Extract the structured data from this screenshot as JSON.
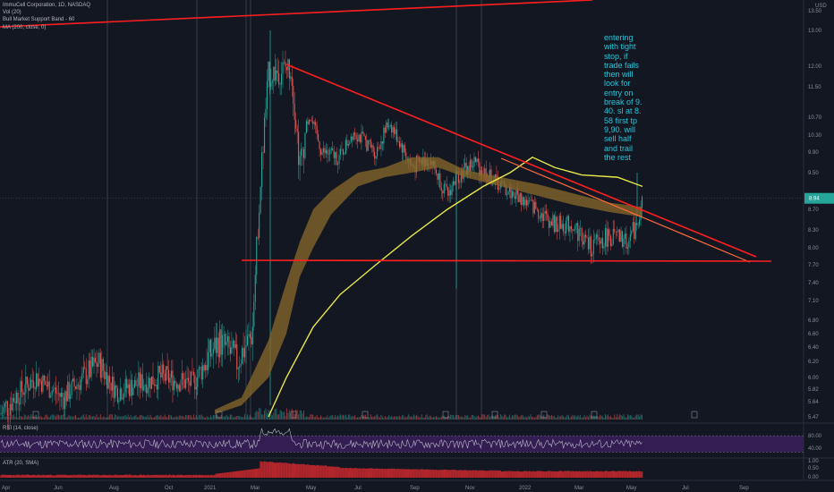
{
  "legend": {
    "symbol": "ImmuCell Corporation, 1D, NASDAQ",
    "vol": "Vol (20)",
    "band": "Bull Market Support Band - 60",
    "ma": "MA (200, close, 0)"
  },
  "annotation_lines": [
    "entering",
    "with tight",
    "stop, if",
    "trade fails",
    "then will",
    "look for",
    "entry on",
    "break of 9.",
    "40. sl at 8.",
    "58 first tp",
    "9,90. will",
    "sell half",
    "and trail",
    "the rest"
  ],
  "rsi_label": "RSI (14, close)",
  "atr_label": "ATR (20, SMA)",
  "colors": {
    "background": "#131722",
    "up": "#26a69a",
    "down": "#ef5350",
    "trendline": "#ff1f1f",
    "ma200": "#e8e84a",
    "band": "#8a6a2a",
    "rsi_line": "#b8b8c8",
    "rsi_band": "#3a1f5a",
    "atr": "#b3262b",
    "annotation": "#26c6da"
  },
  "chart_data": {
    "type": "candlestick",
    "currency": "USD",
    "price_ticks": [
      "13.50",
      "13.00",
      "12.00",
      "11.50",
      "10.70",
      "10.30",
      "9.90",
      "9.50",
      "8.70",
      "8.30",
      "8.00",
      "7.70",
      "7.40",
      "7.10",
      "6.80",
      "6.60",
      "6.40",
      "6.20",
      "6.00",
      "5.82",
      "5.64",
      "5.47"
    ],
    "last_price": "8.94",
    "x_ticks": [
      "Apr",
      "Jun",
      "Aug",
      "Oct",
      "2021",
      "Mar",
      "May",
      "Jul",
      "Sep",
      "Nov",
      "2022",
      "Mar",
      "May",
      "Jul",
      "Sep"
    ],
    "trendlines": [
      {
        "name": "descending-resistance",
        "from": [
          "2021-02-22",
          12.0
        ],
        "to": [
          "2022-07-15",
          7.8
        ]
      },
      {
        "name": "horizontal-support",
        "from": [
          "2020-12-10",
          7.73
        ],
        "to": [
          "2022-08-01",
          7.73
        ]
      },
      {
        "name": "long-term-rising",
        "from": [
          "2020-04-01",
          13.0
        ],
        "to": [
          "2021-10-01",
          13.9
        ]
      }
    ],
    "rsi": {
      "ticks": [
        "80.00",
        "40.00"
      ],
      "upper": 70,
      "lower": 30
    },
    "atr": {
      "ticks": [
        "1.00",
        "0.50",
        "0.00"
      ]
    }
  }
}
